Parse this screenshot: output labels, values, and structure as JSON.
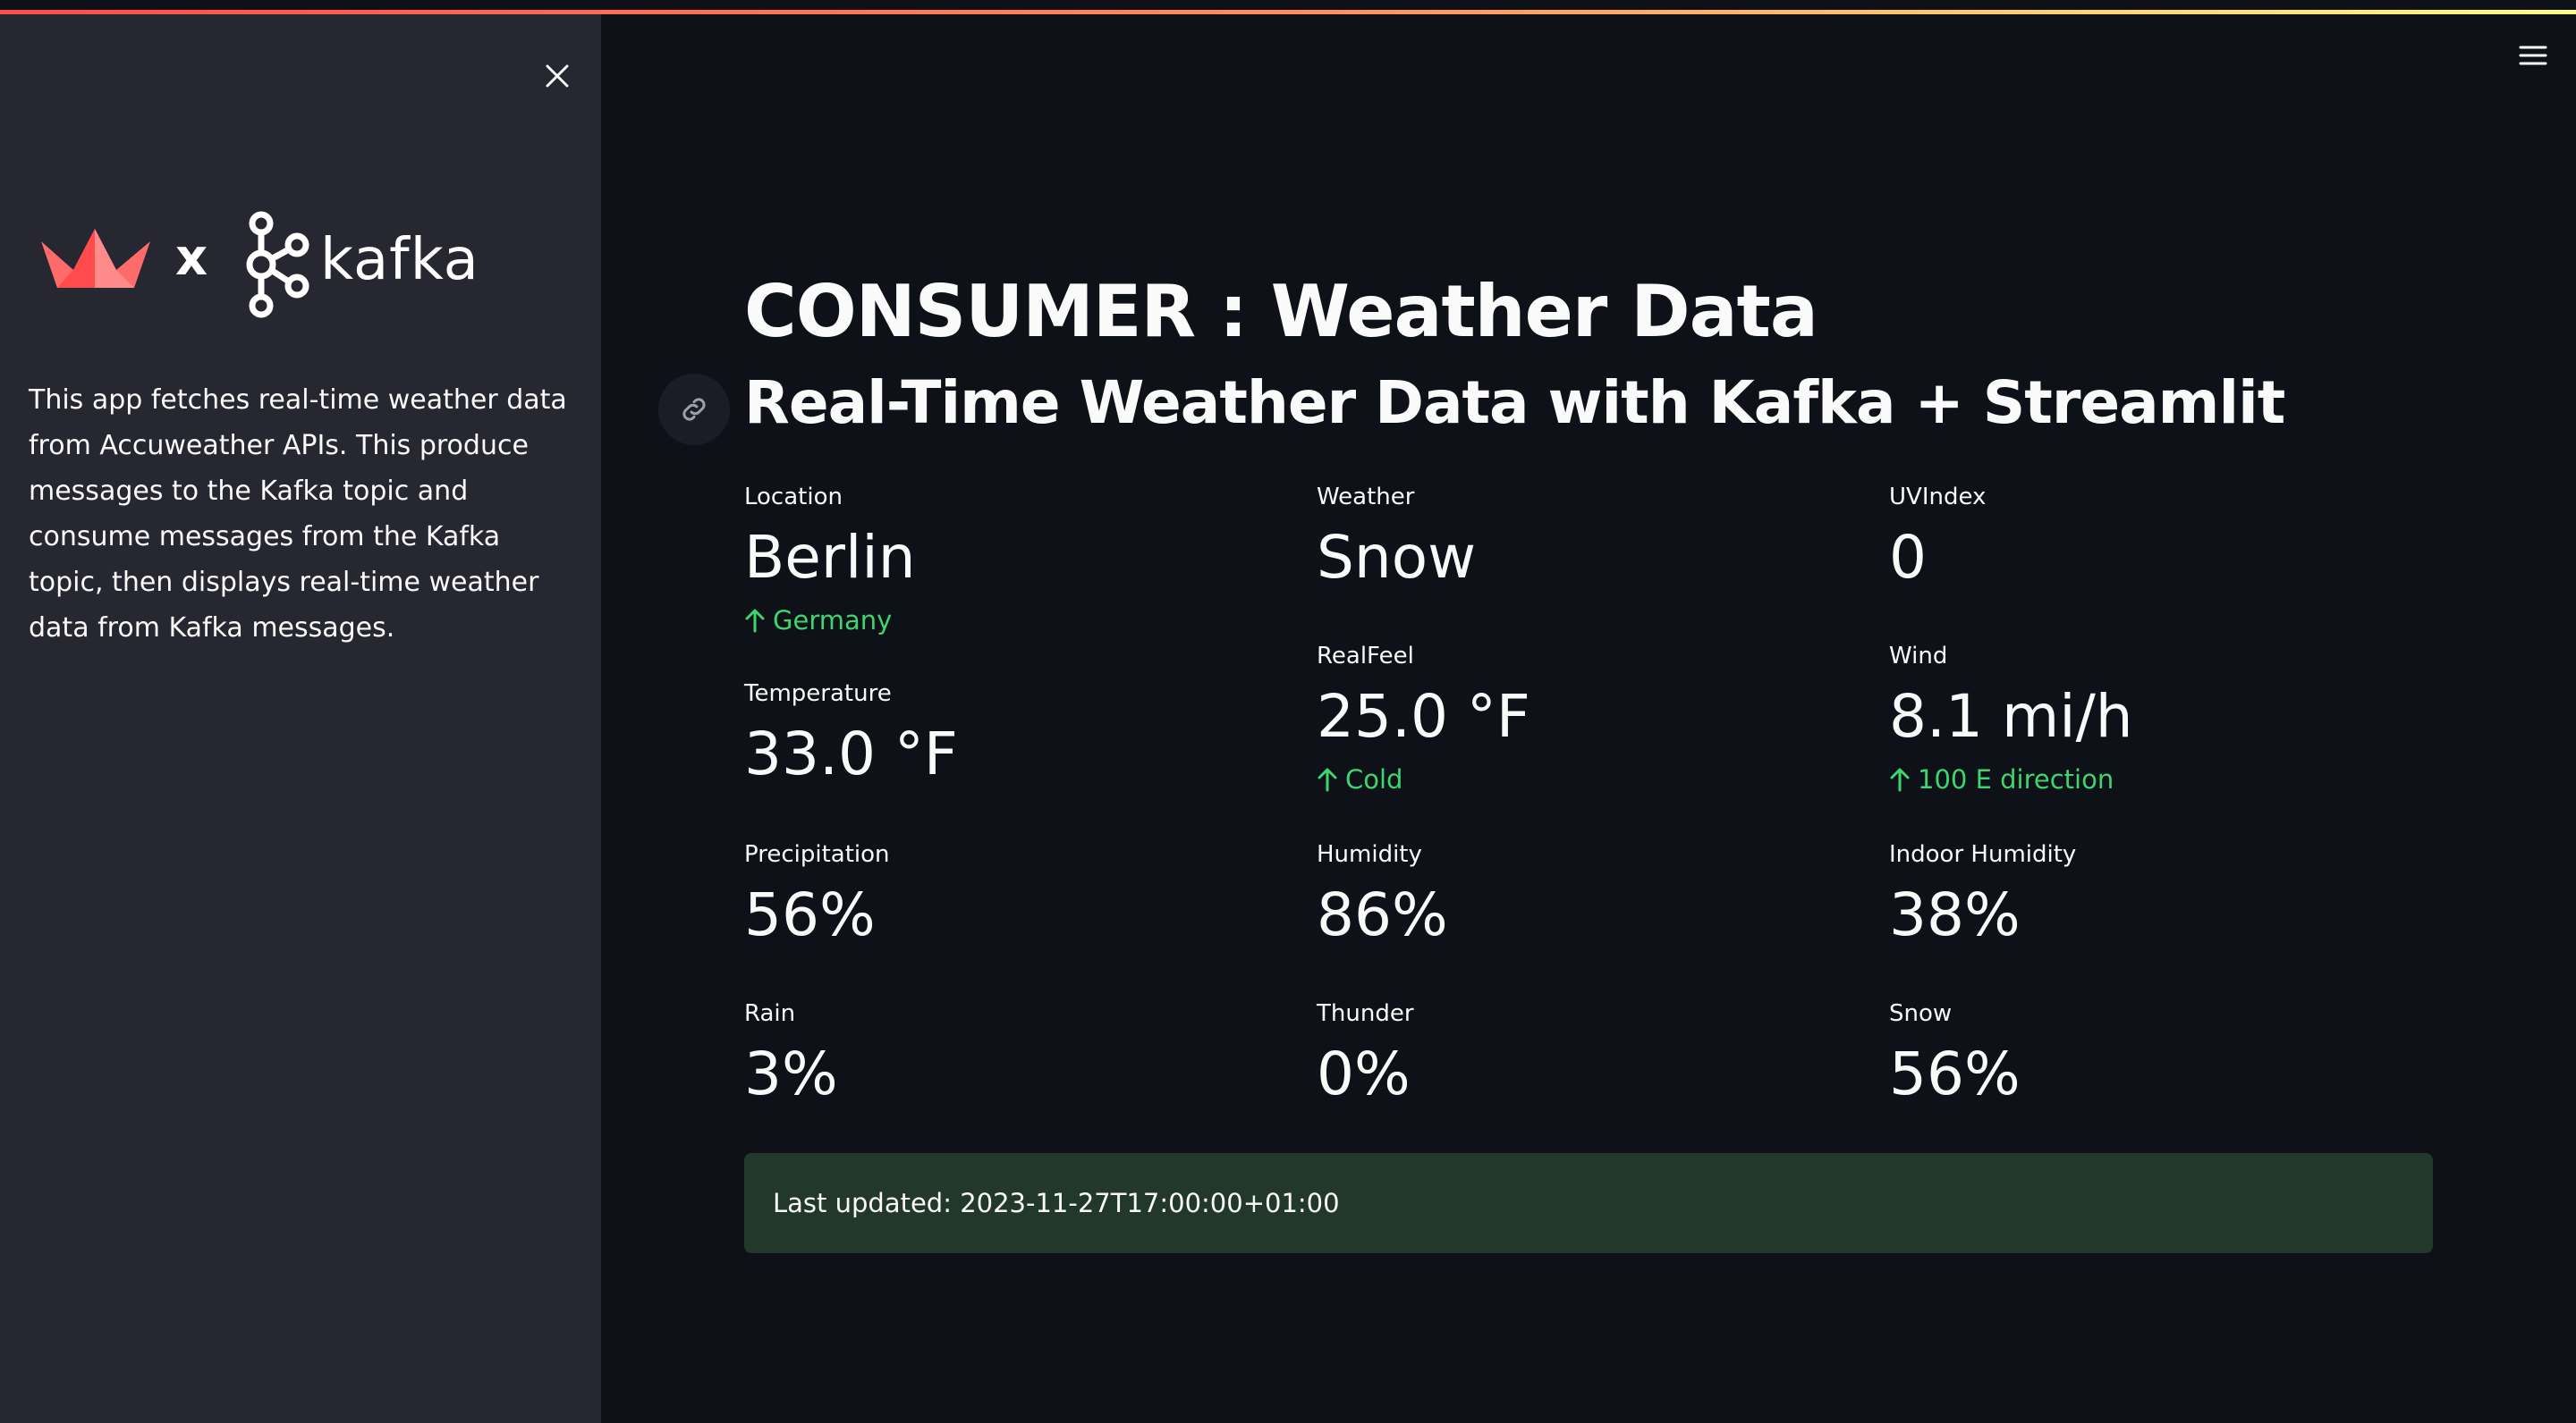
{
  "sidebar": {
    "logo_connector": "x",
    "kafka_wordmark": "kafka",
    "description": "This app fetches real-time weather data from Accuweather APIs. This produce messages to the Kafka topic and consume messages from the Kafka topic, then displays real-time weather data from Kafka messages."
  },
  "main": {
    "title": "CONSUMER : Weather Data",
    "subtitle": "Real-Time Weather Data with Kafka + Streamlit"
  },
  "metrics": {
    "location": {
      "label": "Location",
      "value": "Berlin",
      "delta": "Germany"
    },
    "weather": {
      "label": "Weather",
      "value": "Snow"
    },
    "uvindex": {
      "label": "UVIndex",
      "value": "0"
    },
    "temperature": {
      "label": "Temperature",
      "value": "33.0 °F"
    },
    "realfeel": {
      "label": "RealFeel",
      "value": "25.0 °F",
      "delta": "Cold"
    },
    "wind": {
      "label": "Wind",
      "value": "8.1 mi/h",
      "delta": "100 E direction"
    },
    "precipitation": {
      "label": "Precipitation",
      "value": "56%"
    },
    "humidity": {
      "label": "Humidity",
      "value": "86%"
    },
    "indoor_humidity": {
      "label": "Indoor Humidity",
      "value": "38%"
    },
    "rain": {
      "label": "Rain",
      "value": "3%"
    },
    "thunder": {
      "label": "Thunder",
      "value": "0%"
    },
    "snow": {
      "label": "Snow",
      "value": "56%"
    }
  },
  "status": {
    "last_updated": "Last updated: 2023-11-27T17:00:00+01:00"
  },
  "colors": {
    "background": "#0e1117",
    "sidebar": "#262730",
    "delta_positive": "#3dd56d",
    "success_box": "#21382b",
    "streamlit_logo": "#ff6b6b"
  },
  "icons": {
    "sidebar_close": "close-icon",
    "menu": "hamburger-menu-icon",
    "anchor": "link-icon",
    "delta": "arrow-up-icon",
    "streamlit_logo": "streamlit-crown-logo",
    "kafka_logo": "kafka-nodes-logo"
  }
}
